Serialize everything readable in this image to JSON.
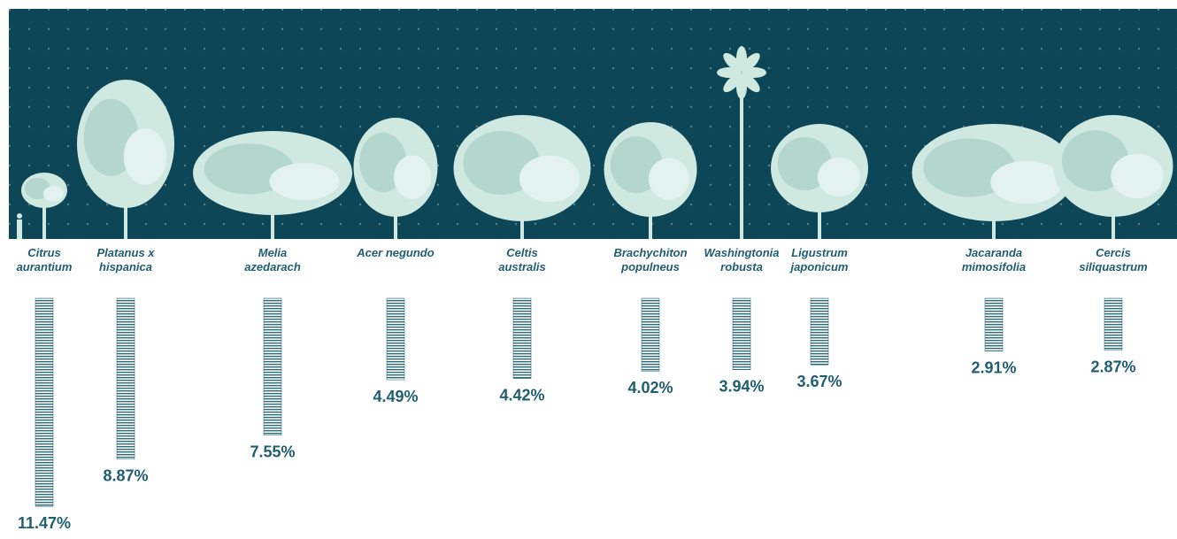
{
  "chart_data": {
    "type": "bar",
    "categories": [
      "Citrus aurantium",
      "Platanus x hispanica",
      "Melia azedarach",
      "Acer negundo",
      "Celtis australis",
      "Brachychiton populneus",
      "Washingtonia robusta",
      "Ligustrum japonicum",
      "Jacaranda mimosifolia",
      "Cercis siliquastrum"
    ],
    "values": [
      11.47,
      8.87,
      7.55,
      4.49,
      4.42,
      4.02,
      3.94,
      3.67,
      2.91,
      2.87
    ],
    "value_labels": [
      "11.47%",
      "8.87%",
      "7.55%",
      "4.49%",
      "4.42%",
      "4.02%",
      "3.94%",
      "3.67%",
      "2.91%",
      "2.87%"
    ],
    "color": "#1f5e70"
  }
}
